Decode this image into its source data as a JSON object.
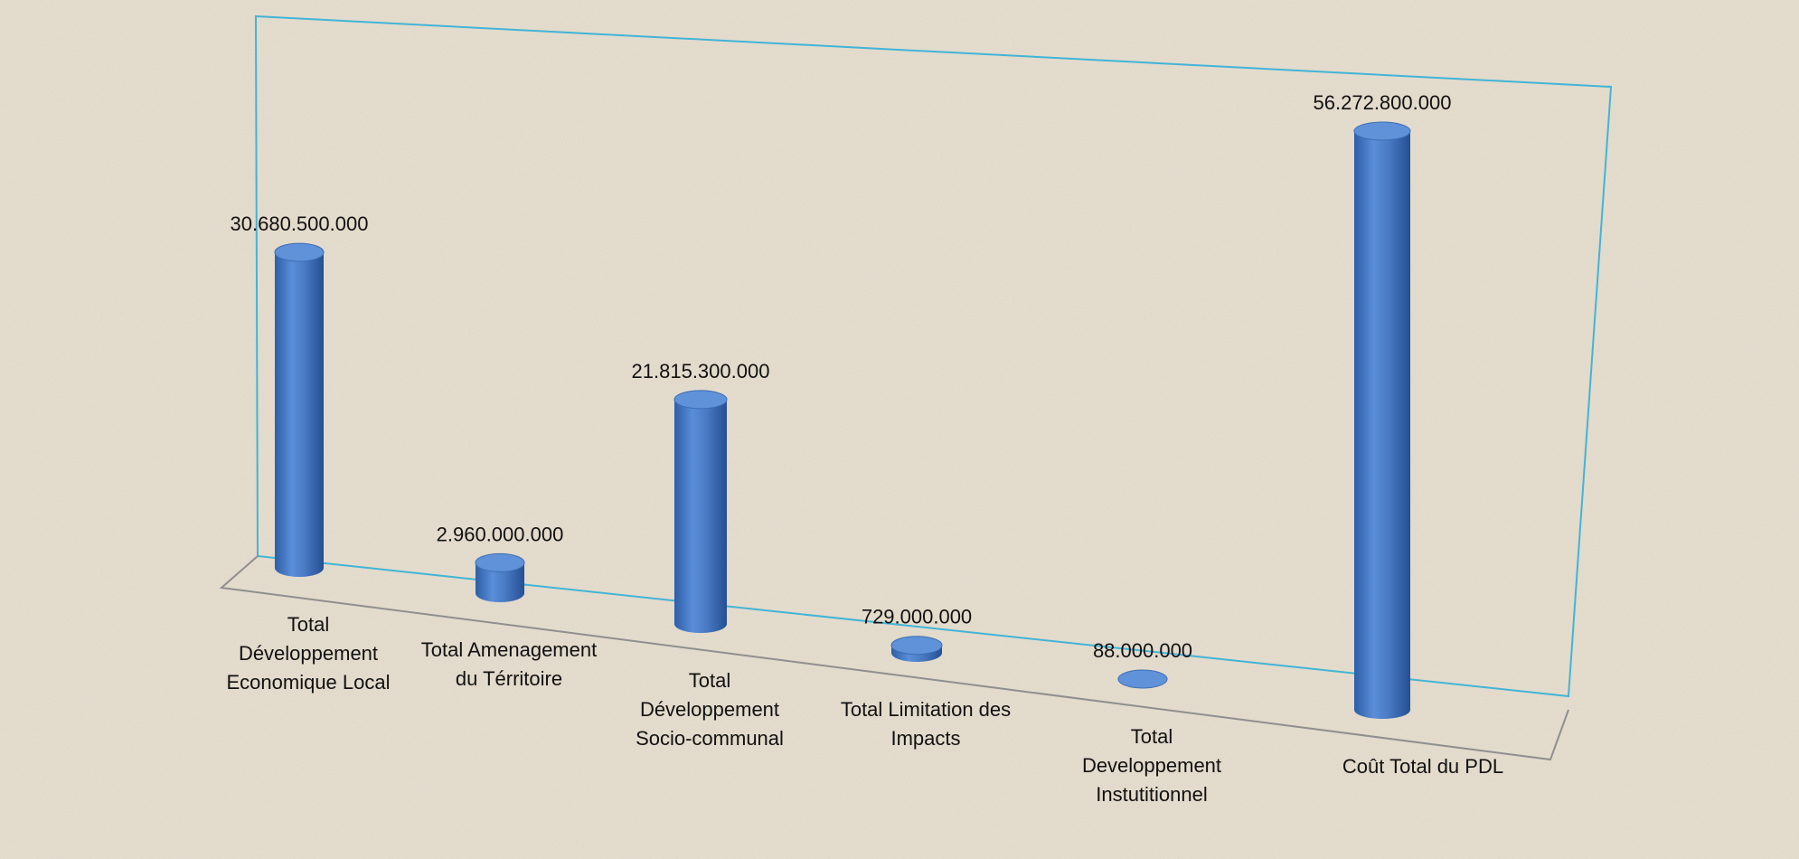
{
  "chart_data": {
    "type": "bar",
    "style": "3d-cylinder",
    "title": "",
    "xlabel": "",
    "ylabel": "",
    "grid": false,
    "legend": "none",
    "categories": [
      "Total Développement Economique Local",
      "Total Amenagement du Térritoire",
      "Total Développement Socio-communal",
      "Total Limitation des Impacts",
      "Total Developpement Instutitionnel",
      "Coût Total du PDL"
    ],
    "category_lines": [
      [
        "Total",
        "Développement",
        "Economique Local"
      ],
      [
        "Total Amenagement",
        "du Térritoire"
      ],
      [
        "Total",
        "Développement",
        "Socio-communal"
      ],
      [
        "Total Limitation des",
        "Impacts"
      ],
      [
        "Total",
        "Developpement",
        "Instutitionnel"
      ],
      [
        "Coût Total du PDL"
      ]
    ],
    "values": [
      30680500000,
      2960000000,
      21815300000,
      729000000,
      88000000,
      56272800000
    ],
    "value_labels": [
      "30.680.500.000",
      "2.960.000.000",
      "21.815.300.000",
      "729.000.000",
      "88.000.000",
      "56.272.800.000"
    ],
    "colors": {
      "bar": "#4a7bc4",
      "frame": "#42b4d6",
      "floor": "#8f8f8f"
    }
  }
}
